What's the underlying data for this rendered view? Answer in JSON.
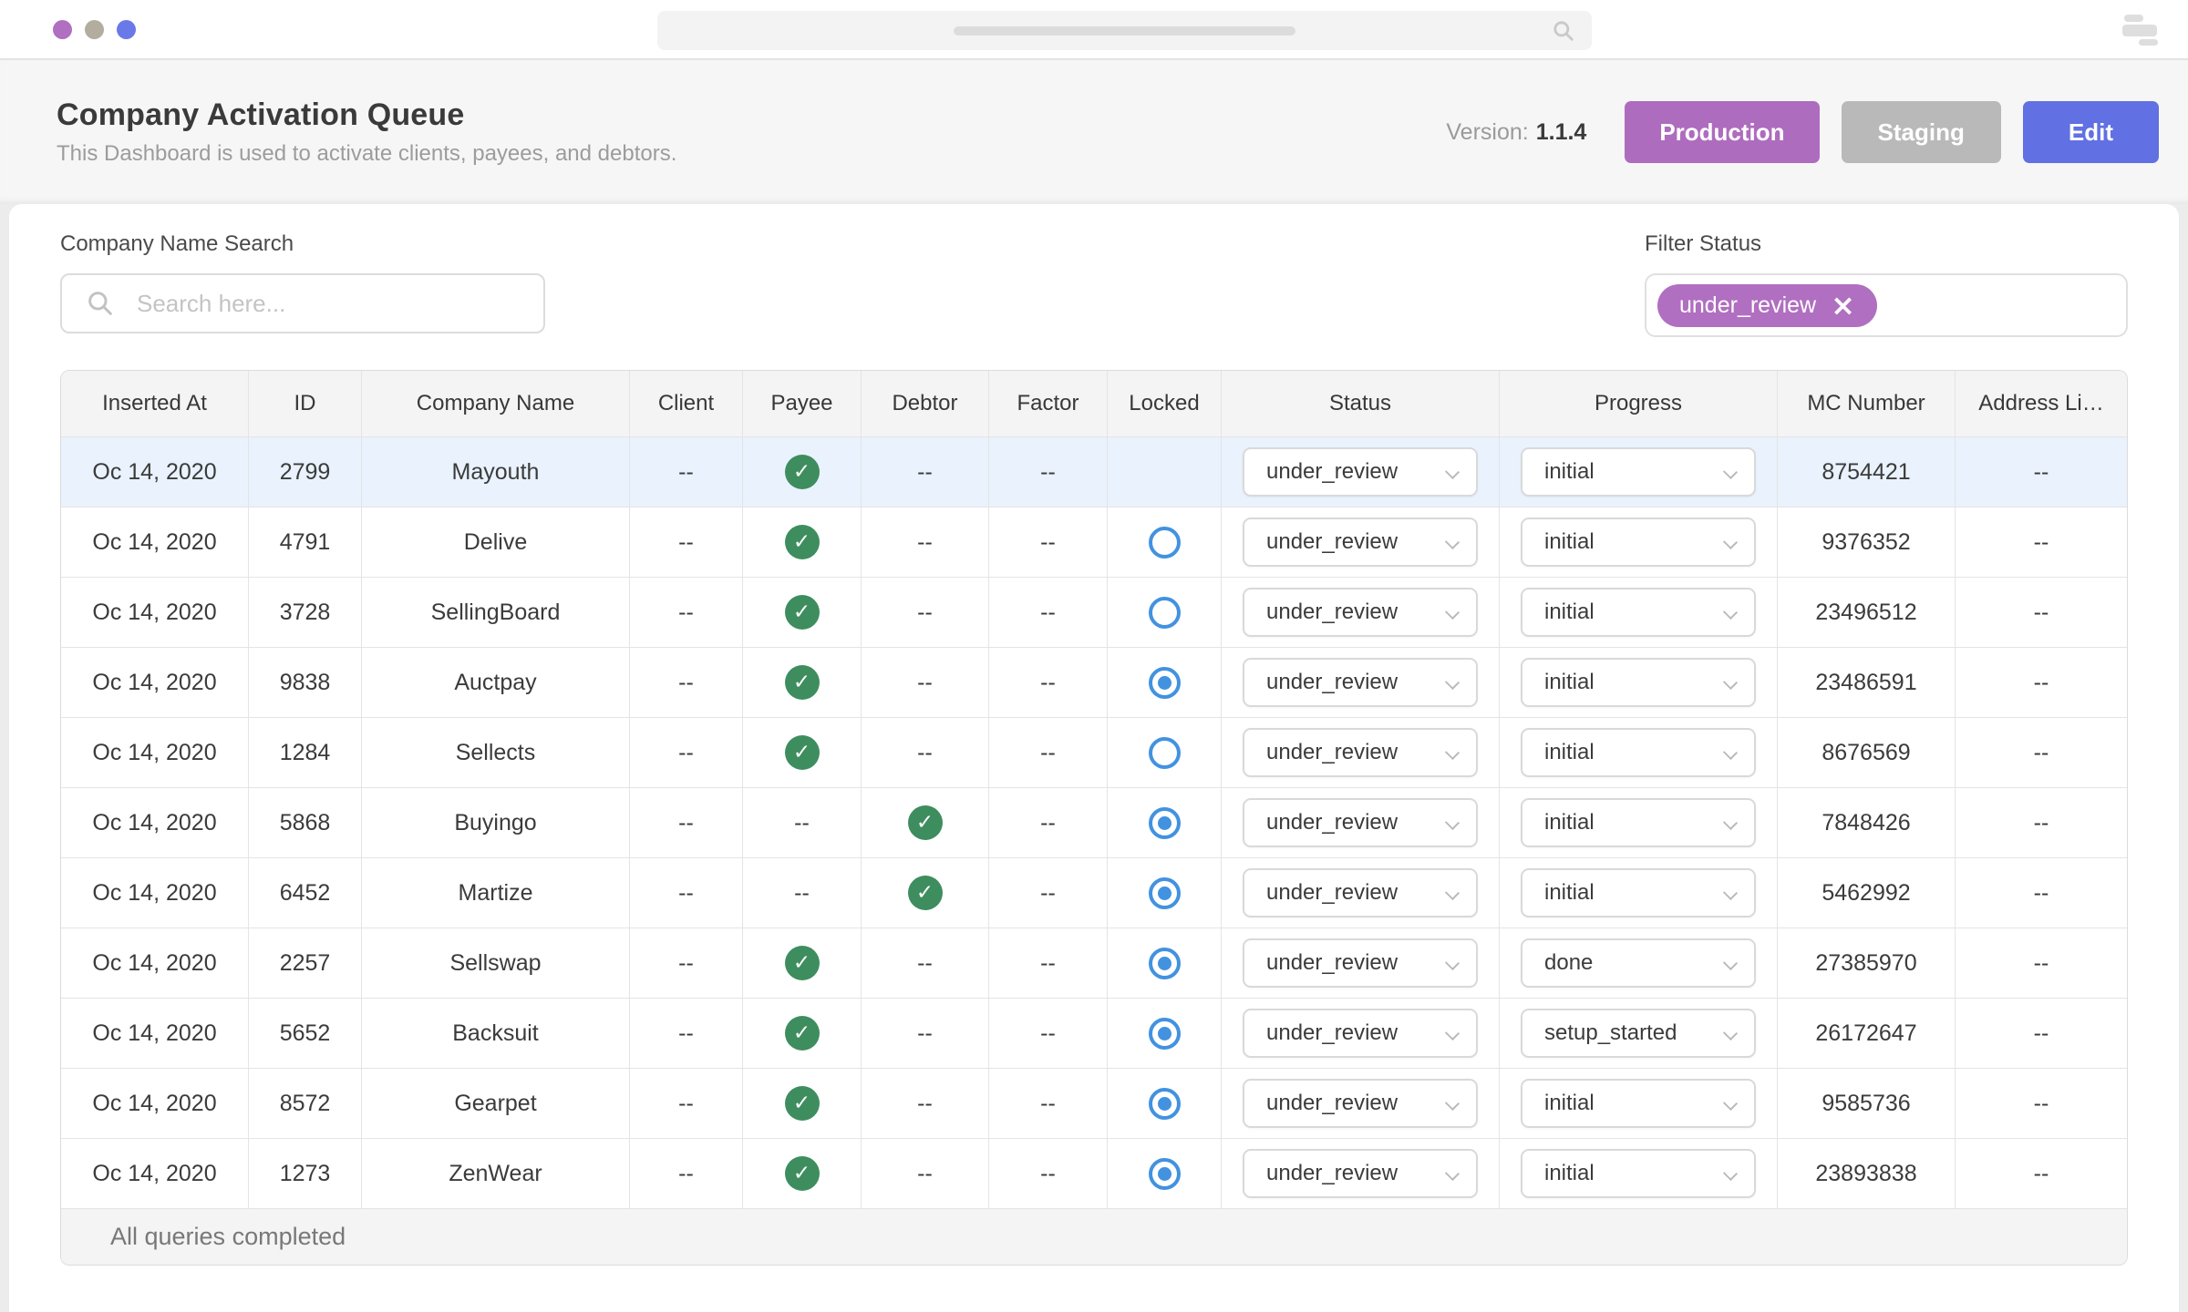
{
  "chrome": {
    "traffic_lights": [
      "purple",
      "gray",
      "blue"
    ],
    "icons": {
      "url_search": "magnifier-icon",
      "window_menu": "stacked-bars-icon"
    }
  },
  "header": {
    "title": "Company Activation Queue",
    "subtitle": "This Dashboard is used to activate clients, payees, and debtors.",
    "version_label": "Version:",
    "version_value": "1.1.4",
    "buttons": [
      {
        "label": "Production",
        "color": "#ae6cbe"
      },
      {
        "label": "Staging",
        "color": "#b9b9b9"
      },
      {
        "label": "Edit",
        "color": "#6170e2"
      }
    ]
  },
  "filters": {
    "search_label": "Company Name Search",
    "search_placeholder": "Search here...",
    "search_value": "",
    "filter_status_label": "Filter Status",
    "filter_tag": "under_review",
    "filter_tag_remove_icon": "close-x"
  },
  "colors": {
    "accent_purple": "#b06fc0",
    "accent_blue": "#6170e2",
    "neutral_gray": "#b9b9b9",
    "success_green": "#3e8d5e",
    "radio_blue": "#4292e0",
    "row_highlight": "#e9f2fd"
  },
  "table": {
    "columns": [
      "Inserted At",
      "ID",
      "Company Name",
      "Client",
      "Payee",
      "Debtor",
      "Factor",
      "Locked",
      "Status",
      "Progress",
      "MC Number",
      "Address Li…"
    ],
    "rows": [
      {
        "inserted_at": "Oc 14, 2020",
        "id": "2799",
        "company": "Mayouth",
        "client": "--",
        "payee": "check",
        "debtor": "--",
        "factor": "--",
        "locked": "none",
        "status": "under_review",
        "progress": "initial",
        "mc_number": "8754421",
        "address": "--",
        "highlighted": true
      },
      {
        "inserted_at": "Oc 14, 2020",
        "id": "4791",
        "company": "Delive",
        "client": "--",
        "payee": "check",
        "debtor": "--",
        "factor": "--",
        "locked": "radio-off",
        "status": "under_review",
        "progress": "initial",
        "mc_number": "9376352",
        "address": "--",
        "highlighted": false
      },
      {
        "inserted_at": "Oc 14, 2020",
        "id": "3728",
        "company": "SellingBoard",
        "client": "--",
        "payee": "check",
        "debtor": "--",
        "factor": "--",
        "locked": "radio-off",
        "status": "under_review",
        "progress": "initial",
        "mc_number": "23496512",
        "address": "--",
        "highlighted": false
      },
      {
        "inserted_at": "Oc 14, 2020",
        "id": "9838",
        "company": "Auctpay",
        "client": "--",
        "payee": "check",
        "debtor": "--",
        "factor": "--",
        "locked": "radio-on",
        "status": "under_review",
        "progress": "initial",
        "mc_number": "23486591",
        "address": "--",
        "highlighted": false
      },
      {
        "inserted_at": "Oc 14, 2020",
        "id": "1284",
        "company": "Sellects",
        "client": "--",
        "payee": "check",
        "debtor": "--",
        "factor": "--",
        "locked": "radio-off",
        "status": "under_review",
        "progress": "initial",
        "mc_number": "8676569",
        "address": "--",
        "highlighted": false
      },
      {
        "inserted_at": "Oc 14, 2020",
        "id": "5868",
        "company": "Buyingo",
        "client": "--",
        "payee": "--",
        "debtor": "check",
        "factor": "--",
        "locked": "radio-on",
        "status": "under_review",
        "progress": "initial",
        "mc_number": "7848426",
        "address": "--",
        "highlighted": false
      },
      {
        "inserted_at": "Oc 14, 2020",
        "id": "6452",
        "company": "Martize",
        "client": "--",
        "payee": "--",
        "debtor": "check",
        "factor": "--",
        "locked": "radio-on",
        "status": "under_review",
        "progress": "initial",
        "mc_number": "5462992",
        "address": "--",
        "highlighted": false
      },
      {
        "inserted_at": "Oc 14, 2020",
        "id": "2257",
        "company": "Sellswap",
        "client": "--",
        "payee": "check",
        "debtor": "--",
        "factor": "--",
        "locked": "radio-on",
        "status": "under_review",
        "progress": "done",
        "mc_number": "27385970",
        "address": "--",
        "highlighted": false
      },
      {
        "inserted_at": "Oc 14, 2020",
        "id": "5652",
        "company": "Backsuit",
        "client": "--",
        "payee": "check",
        "debtor": "--",
        "factor": "--",
        "locked": "radio-on",
        "status": "under_review",
        "progress": "setup_started",
        "mc_number": "26172647",
        "address": "--",
        "highlighted": false
      },
      {
        "inserted_at": "Oc 14, 2020",
        "id": "8572",
        "company": "Gearpet",
        "client": "--",
        "payee": "check",
        "debtor": "--",
        "factor": "--",
        "locked": "radio-on",
        "status": "under_review",
        "progress": "initial",
        "mc_number": "9585736",
        "address": "--",
        "highlighted": false
      },
      {
        "inserted_at": "Oc 14, 2020",
        "id": "1273",
        "company": "ZenWear",
        "client": "--",
        "payee": "check",
        "debtor": "--",
        "factor": "--",
        "locked": "radio-on",
        "status": "under_review",
        "progress": "initial",
        "mc_number": "23893838",
        "address": "--",
        "highlighted": false
      }
    ],
    "footer": "All queries completed"
  }
}
